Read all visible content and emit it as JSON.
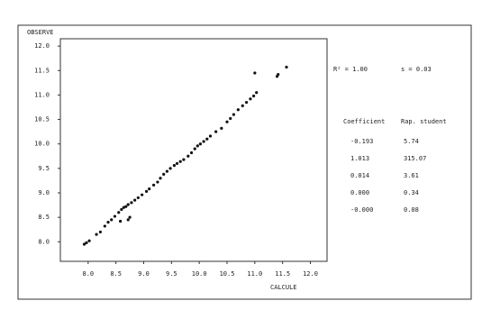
{
  "chart_data": {
    "type": "scatter",
    "ylabel": "OBSERVE",
    "xlabel": "CALCULE",
    "x": [
      7.93,
      7.97,
      8.02,
      8.15,
      8.22,
      8.3,
      8.36,
      8.42,
      8.48,
      8.55,
      8.6,
      8.64,
      8.68,
      8.72,
      8.78,
      8.84,
      8.9,
      8.97,
      9.05,
      9.1,
      9.18,
      9.25,
      9.3,
      9.36,
      9.42,
      9.48,
      9.55,
      9.6,
      9.66,
      9.72,
      9.8,
      9.86,
      9.92,
      9.97,
      10.02,
      10.08,
      10.14,
      10.2,
      10.3,
      10.4,
      10.5,
      10.56,
      10.62,
      10.7,
      10.78,
      10.85,
      10.92,
      10.98,
      11.03,
      11.4,
      11.42,
      11.57,
      11.0,
      8.72,
      8.75,
      8.58
    ],
    "values": [
      7.95,
      7.98,
      8.02,
      8.15,
      8.2,
      8.32,
      8.4,
      8.45,
      8.52,
      8.6,
      8.66,
      8.7,
      8.72,
      8.76,
      8.8,
      8.85,
      8.9,
      8.96,
      9.03,
      9.08,
      9.16,
      9.22,
      9.3,
      9.38,
      9.44,
      9.5,
      9.56,
      9.6,
      9.64,
      9.68,
      9.75,
      9.82,
      9.9,
      9.96,
      10.0,
      10.05,
      10.1,
      10.16,
      10.25,
      10.32,
      10.45,
      10.52,
      10.6,
      10.7,
      10.78,
      10.85,
      10.92,
      10.98,
      11.05,
      11.38,
      11.42,
      11.57,
      11.45,
      8.45,
      8.5,
      8.42
    ],
    "color": "#111111",
    "xlim": [
      7.5,
      12.3
    ],
    "ylim": [
      7.6,
      12.15
    ],
    "xticks": [
      {
        "value": 8,
        "label": "8.0"
      },
      {
        "value": 8.5,
        "label": "8.5"
      },
      {
        "value": 9,
        "label": "9.0"
      },
      {
        "value": 9.5,
        "label": "9.5"
      },
      {
        "value": 10,
        "label": "10.0"
      },
      {
        "value": 10.5,
        "label": "10.5"
      },
      {
        "value": 11,
        "label": "11.0"
      },
      {
        "value": 11.5,
        "label": "11.5"
      },
      {
        "value": 12,
        "label": "12.0"
      }
    ],
    "yticks": [
      {
        "value": 8,
        "label": "8.0"
      },
      {
        "value": 8.5,
        "label": "8.5"
      },
      {
        "value": 9,
        "label": "9.0"
      },
      {
        "value": 9.5,
        "label": "9.5"
      },
      {
        "value": 10,
        "label": "10.0"
      },
      {
        "value": 10.5,
        "label": "10.5"
      },
      {
        "value": 11,
        "label": "11.0"
      },
      {
        "value": 11.5,
        "label": "11.5"
      },
      {
        "value": 12,
        "label": "12.0"
      }
    ],
    "grid": false,
    "annotations": [
      "R² = 1.00",
      "s = 0.03"
    ],
    "table": {
      "header": [
        "Coefficient",
        "Rap. student"
      ],
      "rows": [
        [
          "-0.193",
          "5.74"
        ],
        [
          "1.013",
          "315.07"
        ],
        [
          "0.014",
          "3.61"
        ],
        [
          "0.000",
          "0.34"
        ],
        [
          "-0.000",
          "0.08"
        ]
      ]
    }
  }
}
